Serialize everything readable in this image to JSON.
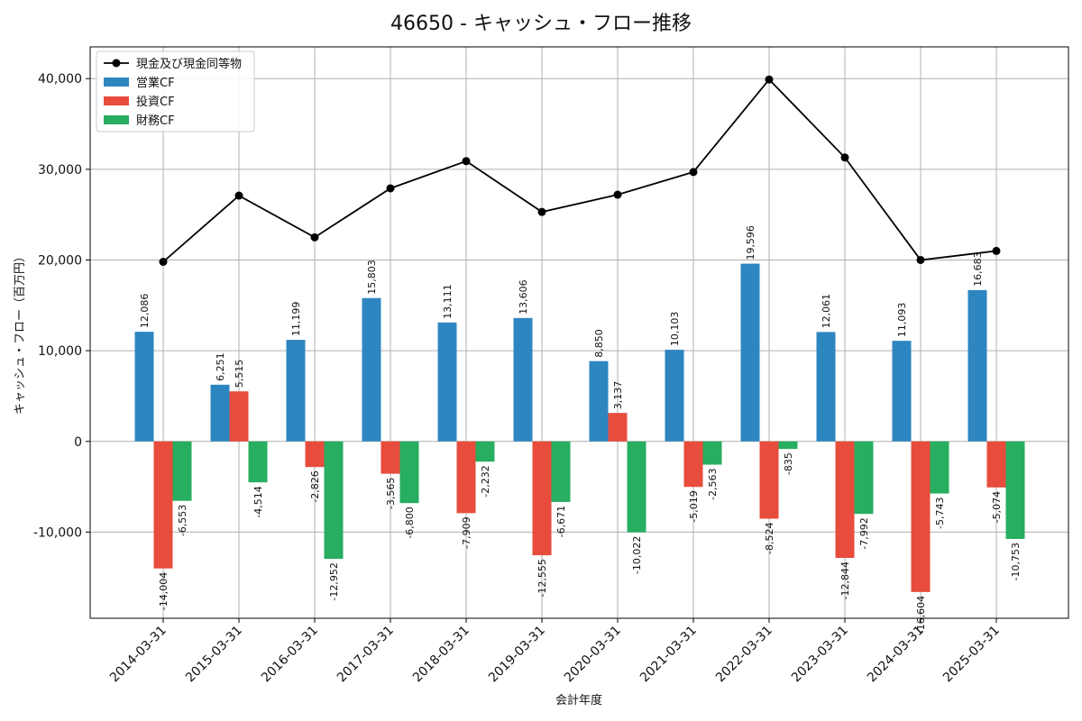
{
  "chart_data": {
    "type": "bar",
    "title": "46650 - キャッシュ・フロー推移",
    "xlabel": "会計年度",
    "ylabel": "キャッシュ・フロー（百万円）",
    "categories": [
      "2014-03-31",
      "2015-03-31",
      "2016-03-31",
      "2017-03-31",
      "2018-03-31",
      "2019-03-31",
      "2020-03-31",
      "2021-03-31",
      "2022-03-31",
      "2023-03-31",
      "2024-03-31",
      "2025-03-31"
    ],
    "ylim": [
      -19500,
      43500
    ],
    "yticks": [
      -10000,
      0,
      10000,
      20000,
      30000,
      40000
    ],
    "ytick_labels": [
      "-10,000",
      "0",
      "10,000",
      "20,000",
      "30,000",
      "40,000"
    ],
    "grid": true,
    "legend_position": "top-left",
    "series": [
      {
        "name": "営業CF",
        "kind": "bar",
        "color": "#2e86c1",
        "values": [
          12086,
          6251,
          11199,
          15803,
          13111,
          13606,
          8850,
          10103,
          19596,
          12061,
          11093,
          16683
        ],
        "labels": [
          "12,086",
          "6,251",
          "11,199",
          "15,803",
          "13,111",
          "13,606",
          "8,850",
          "10,103",
          "19,596",
          "12,061",
          "11,093",
          "16,683"
        ]
      },
      {
        "name": "投資CF",
        "kind": "bar",
        "color": "#e74c3c",
        "values": [
          -14004,
          5515,
          -2826,
          -3565,
          -7909,
          -12555,
          3137,
          -5019,
          -8524,
          -12844,
          -16604,
          -5074
        ],
        "labels": [
          "-14,004",
          "5,515",
          "-2,826",
          "-3,565",
          "-7,909",
          "-12,555",
          "3,137",
          "-5,019",
          "-8,524",
          "-12,844",
          "-16,604",
          "-5,074"
        ]
      },
      {
        "name": "財務CF",
        "kind": "bar",
        "color": "#27ae60",
        "values": [
          -6553,
          -4514,
          -12952,
          -6800,
          -2232,
          -6671,
          -10022,
          -2563,
          -835,
          -7992,
          -5743,
          -10753
        ],
        "labels": [
          "-6,553",
          "-4,514",
          "-12,952",
          "-6,800",
          "-2,232",
          "-6,671",
          "-10,022",
          "-2,563",
          "-835",
          "-7,992",
          "-5,743",
          "-10,753"
        ]
      },
      {
        "name": "現金及び現金同等物",
        "kind": "line",
        "color": "#000000",
        "values": [
          19800,
          27100,
          22500,
          27900,
          30900,
          25300,
          27200,
          29700,
          39900,
          31300,
          20000,
          21000
        ]
      }
    ]
  }
}
